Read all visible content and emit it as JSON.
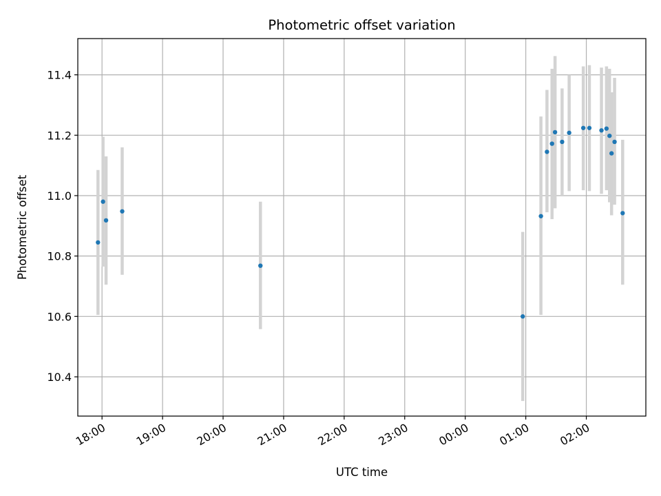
{
  "chart_data": {
    "type": "scatter",
    "title": "Photometric offset variation",
    "xlabel": "UTC time",
    "ylabel": "Photometric offset",
    "x_axis": {
      "kind": "time",
      "range": [
        "17:36",
        "02:59"
      ],
      "ticks": [
        "18:00",
        "19:00",
        "20:00",
        "21:00",
        "22:00",
        "23:00",
        "00:00",
        "01:00",
        "02:00"
      ]
    },
    "y_axis": {
      "range": [
        10.27,
        11.52
      ],
      "ticks": [
        10.4,
        10.6,
        10.8,
        11.0,
        11.2,
        11.4
      ],
      "tick_labels": [
        "10.4",
        "10.6",
        "10.8",
        "11.0",
        "11.2",
        "11.4"
      ]
    },
    "grid": true,
    "colors": {
      "point": "#1f77b4",
      "errorbar": "#d3d3d3",
      "grid": "#b0b0b0",
      "axes": "#000000"
    },
    "points": [
      {
        "t": "17:56",
        "y": 10.845,
        "lo": 10.605,
        "hi": 11.085
      },
      {
        "t": "18:01",
        "y": 10.98,
        "lo": 10.765,
        "hi": 11.195
      },
      {
        "t": "18:04",
        "y": 10.918,
        "lo": 10.705,
        "hi": 11.13
      },
      {
        "t": "18:20",
        "y": 10.948,
        "lo": 10.738,
        "hi": 11.16
      },
      {
        "t": "20:37",
        "y": 10.768,
        "lo": 10.558,
        "hi": 10.98
      },
      {
        "t": "00:57",
        "y": 10.6,
        "lo": 10.32,
        "hi": 10.88
      },
      {
        "t": "01:15",
        "y": 10.932,
        "lo": 10.605,
        "hi": 11.262
      },
      {
        "t": "01:21",
        "y": 11.145,
        "lo": 10.945,
        "hi": 11.35
      },
      {
        "t": "01:26",
        "y": 11.172,
        "lo": 10.922,
        "hi": 11.42
      },
      {
        "t": "01:29",
        "y": 11.21,
        "lo": 10.958,
        "hi": 11.462
      },
      {
        "t": "01:36",
        "y": 11.178,
        "lo": 11.0,
        "hi": 11.355
      },
      {
        "t": "01:43",
        "y": 11.208,
        "lo": 11.015,
        "hi": 11.4
      },
      {
        "t": "01:57",
        "y": 11.224,
        "lo": 11.018,
        "hi": 11.428
      },
      {
        "t": "02:03",
        "y": 11.224,
        "lo": 11.015,
        "hi": 11.432
      },
      {
        "t": "02:15",
        "y": 11.216,
        "lo": 11.006,
        "hi": 11.424
      },
      {
        "t": "02:20",
        "y": 11.222,
        "lo": 11.018,
        "hi": 11.428
      },
      {
        "t": "02:23",
        "y": 11.198,
        "lo": 10.978,
        "hi": 11.42
      },
      {
        "t": "02:25",
        "y": 11.14,
        "lo": 10.935,
        "hi": 11.342
      },
      {
        "t": "02:28",
        "y": 11.178,
        "lo": 10.97,
        "hi": 11.39
      },
      {
        "t": "02:36",
        "y": 10.942,
        "lo": 10.705,
        "hi": 11.185
      }
    ]
  }
}
